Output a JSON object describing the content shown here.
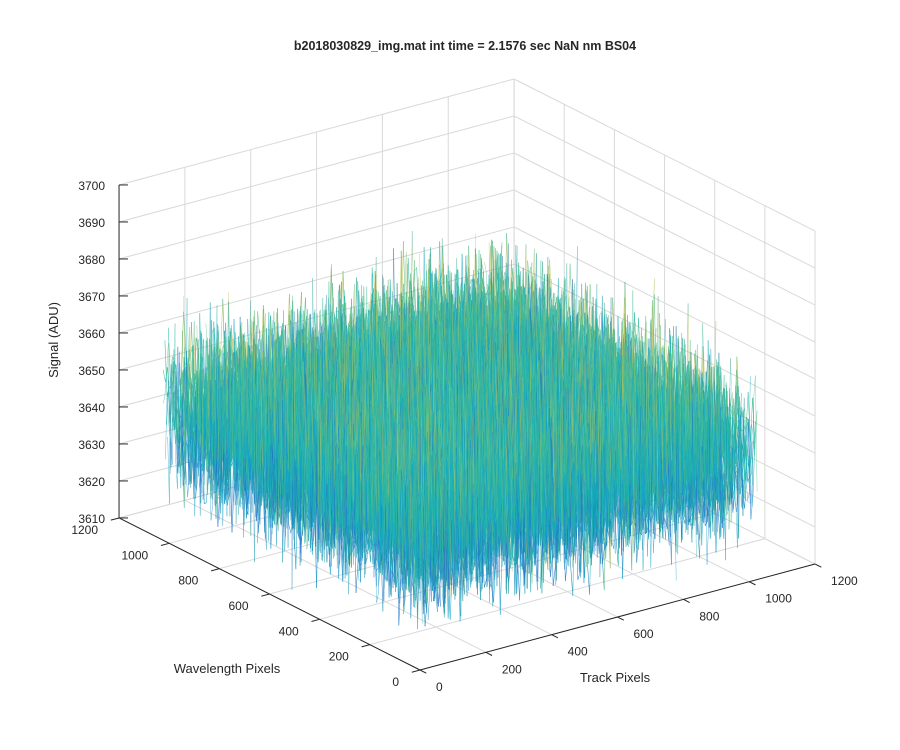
{
  "chart_data": {
    "type": "surface",
    "title": "b2018030829_img.mat int time = 2.1576 sec  NaN nm BS04",
    "xlabel": "Track Pixels",
    "ylabel": "Wavelength Pixels",
    "zlabel": "Signal (ADU)",
    "xlim": [
      0,
      1200
    ],
    "ylim": [
      0,
      1200
    ],
    "zlim": [
      3610,
      3700
    ],
    "x_ticks": [
      0,
      200,
      400,
      600,
      800,
      1000,
      1200
    ],
    "y_ticks": [
      0,
      200,
      400,
      600,
      800,
      1000,
      1200
    ],
    "z_ticks": [
      3610,
      3620,
      3630,
      3640,
      3650,
      3660,
      3670,
      3680,
      3690,
      3700
    ],
    "x_tick_labels": [
      "0",
      "200",
      "400",
      "600",
      "800",
      "1000",
      "1200"
    ],
    "y_tick_labels": [
      "0",
      "200",
      "400",
      "600",
      "800",
      "1000",
      "1200"
    ],
    "z_tick_labels": [
      "3610",
      "3620",
      "3630",
      "3640",
      "3650",
      "3660",
      "3670",
      "3680",
      "3690",
      "3700"
    ],
    "data_extent": {
      "x": [
        0,
        1024
      ],
      "y": [
        0,
        1024
      ]
    },
    "signal": {
      "mean": 3645,
      "spread": 20,
      "min": 3620,
      "max": 3690
    },
    "grid": true,
    "colormap": [
      "#1f77c4",
      "#14a8c8",
      "#22b7a4",
      "#5ec08a",
      "#b9c25a",
      "#e0c243"
    ]
  }
}
